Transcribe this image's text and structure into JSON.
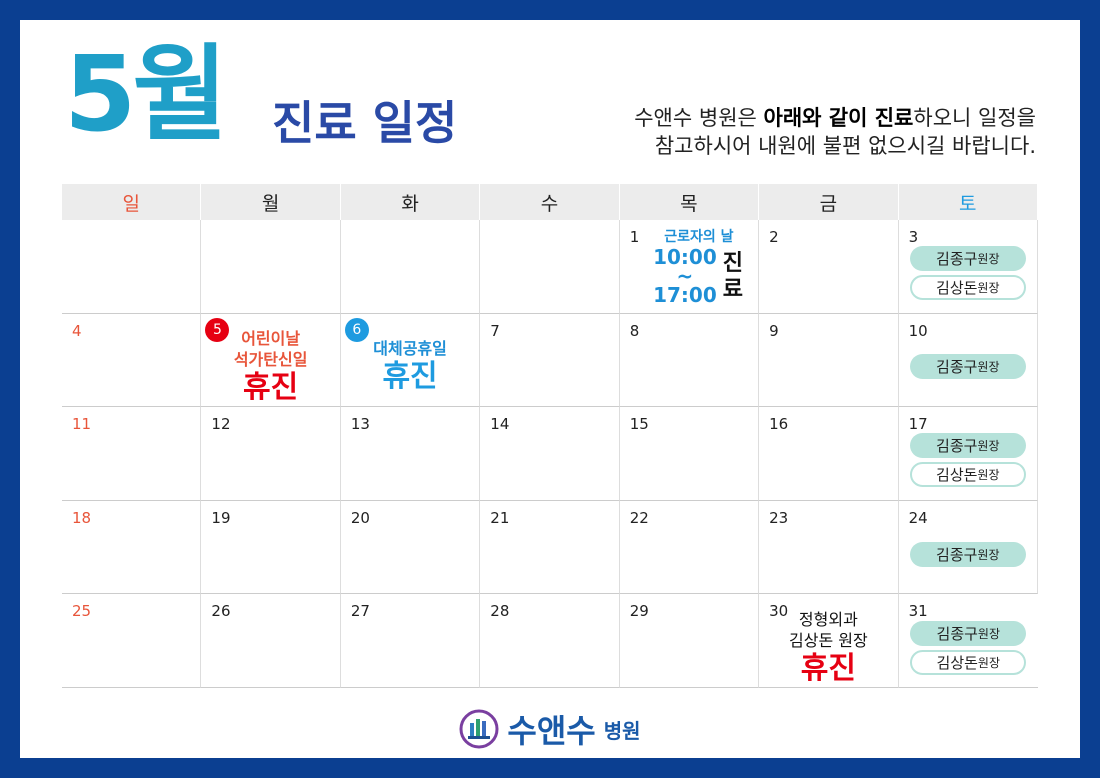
{
  "header": {
    "month": "5월",
    "title": "진료 일정",
    "notice": [
      [
        {
          "text": "수앤수 병원은 "
        },
        {
          "text": "아래와 같이 진료",
          "bold": true
        },
        {
          "text": "하오니 일정을"
        }
      ],
      [
        {
          "text": "참고하시어 내원에 불편 없으시길 바랍니다."
        }
      ]
    ]
  },
  "calendar": {
    "weekdays": [
      "일",
      "월",
      "화",
      "수",
      "목",
      "금",
      "토"
    ],
    "weeks": [
      [
        null,
        null,
        null,
        null,
        {
          "day": 1,
          "note": "근로자의 날",
          "hours": [
            "10:00",
            "~",
            "17:00"
          ],
          "hours_label": "진료"
        },
        {
          "day": 2
        },
        {
          "day": 3,
          "doctors": [
            {
              "name": "김종구",
              "role": "원장",
              "style": "filled"
            },
            {
              "name": "김상돈",
              "role": "원장",
              "style": "outline"
            }
          ]
        }
      ],
      [
        {
          "day": 4
        },
        {
          "day": 5,
          "badge_color": "#e60012",
          "lines": [
            "어린이날",
            "석가탄신일"
          ],
          "lines_color": "#e8553a",
          "closed": "휴진",
          "closed_color": "#e60012"
        },
        {
          "day": 6,
          "badge_color": "#1e9be0",
          "lines": [
            "대체공휴일"
          ],
          "lines_color": "#1e8fd6",
          "closed": "휴진",
          "closed_color": "#1e9be0"
        },
        {
          "day": 7
        },
        {
          "day": 8
        },
        {
          "day": 9
        },
        {
          "day": 10,
          "doctors": [
            {
              "name": "김종구",
              "role": "원장",
              "style": "filled"
            }
          ]
        }
      ],
      [
        {
          "day": 11
        },
        {
          "day": 12
        },
        {
          "day": 13
        },
        {
          "day": 14
        },
        {
          "day": 15
        },
        {
          "day": 16
        },
        {
          "day": 17,
          "doctors": [
            {
              "name": "김종구",
              "role": "원장",
              "style": "filled"
            },
            {
              "name": "김상돈",
              "role": "원장",
              "style": "outline"
            }
          ]
        }
      ],
      [
        {
          "day": 18
        },
        {
          "day": 19
        },
        {
          "day": 20
        },
        {
          "day": 21
        },
        {
          "day": 22
        },
        {
          "day": 23
        },
        {
          "day": 24,
          "doctors": [
            {
              "name": "김종구",
              "role": "원장",
              "style": "filled"
            }
          ]
        }
      ],
      [
        {
          "day": 25
        },
        {
          "day": 26
        },
        {
          "day": 27
        },
        {
          "day": 28
        },
        {
          "day": 29
        },
        {
          "day": 30,
          "lines": [
            "정형외과",
            "김상돈 원장"
          ],
          "lines_color": "#111111",
          "closed": "휴진",
          "closed_color": "#e60012"
        },
        {
          "day": 31,
          "doctors": [
            {
              "name": "김종구",
              "role": "원장",
              "style": "filled"
            },
            {
              "name": "김상돈",
              "role": "원장",
              "style": "outline"
            }
          ]
        }
      ]
    ]
  },
  "footer": {
    "logo": "수앤수",
    "suffix": "병원"
  }
}
